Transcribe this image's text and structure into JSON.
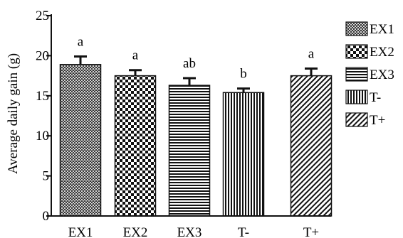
{
  "chart_data": {
    "type": "bar",
    "title": "",
    "xlabel": "",
    "ylabel": "Average daily gain (g)",
    "categories": [
      "EX1",
      "EX2",
      "EX3",
      "T-",
      "T+"
    ],
    "values": [
      18.9,
      17.5,
      16.3,
      15.4,
      17.5
    ],
    "errors": [
      1.0,
      0.7,
      0.9,
      0.5,
      0.9
    ],
    "letters": [
      "a",
      "a",
      "ab",
      "b",
      "a"
    ],
    "ylim": [
      0,
      25
    ],
    "yticks": [
      "0",
      "5",
      "10",
      "15",
      "20",
      "25"
    ],
    "grid": false,
    "legend_position": "right",
    "legend": [
      "EX1",
      "EX2",
      "EX3",
      "T-",
      "T+"
    ],
    "patterns": [
      "fine-check",
      "checkerboard",
      "horizontal-stripes",
      "vertical-stripes",
      "diagonal-hatch"
    ]
  }
}
